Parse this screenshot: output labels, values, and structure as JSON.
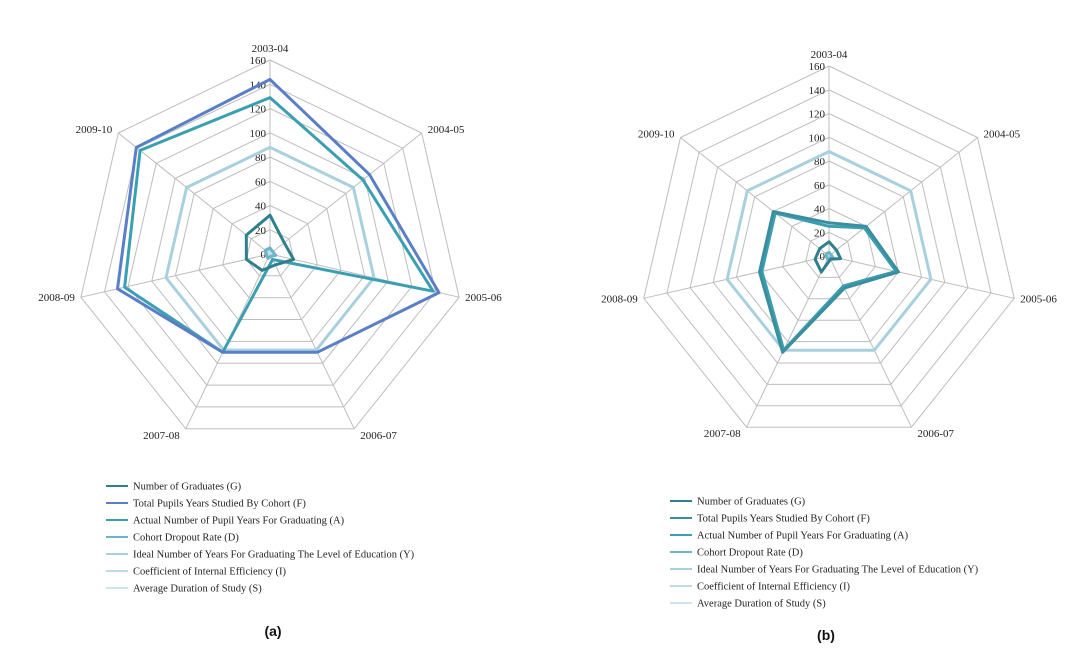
{
  "chart_data": [
    {
      "type": "radar",
      "panel_label": "(a)",
      "categories": [
        "2003-04",
        "2004-05",
        "2005-06",
        "2006-07",
        "2007-08",
        "2008-09",
        "2009-10"
      ],
      "ticks": [
        "0",
        "20",
        "40",
        "60",
        "80",
        "100",
        "120",
        "140",
        "160"
      ],
      "rlim": [
        0,
        160
      ],
      "legend_position": "bottom",
      "series": [
        {
          "name": "Number of Graduates (G)",
          "color": "#2f7f8c",
          "values": [
            32,
            15,
            20,
            10,
            15,
            20,
            25
          ]
        },
        {
          "name": "Total Pupils Years Studied By Cohort (F)",
          "color": "#5b7fc7",
          "values": [
            144,
            105,
            143,
            90,
            90,
            129,
            141
          ]
        },
        {
          "name": "Actual Number of Pupil Years For Graduating (A)",
          "color": "#3b9fb2",
          "values": [
            129,
            98,
            138,
            5,
            90,
            123,
            137
          ]
        },
        {
          "name": "Cohort Dropout Rate (D)",
          "color": "#6fb3c6",
          "values": [
            5,
            3,
            5,
            2,
            4,
            3,
            5
          ]
        },
        {
          "name": "Ideal Number of Years For Graduating The Level of Education (Y)",
          "color": "#a9d0de",
          "values": [
            88,
            88,
            88,
            88,
            88,
            88,
            88
          ]
        },
        {
          "name": "Coefficient of Internal Efficiency (I)",
          "color": "#bcdbe6",
          "values": [
            3,
            3,
            3,
            3,
            3,
            3,
            3
          ]
        },
        {
          "name": "Average Duration of Study (S)",
          "color": "#cfe5ee",
          "values": [
            2,
            2,
            2,
            2,
            2,
            2,
            2
          ]
        }
      ]
    },
    {
      "type": "radar",
      "panel_label": "(b)",
      "categories": [
        "2003-04",
        "2004-05",
        "2005-06",
        "2006-07",
        "2007-08",
        "2008-09",
        "2009-10"
      ],
      "ticks": [
        "0",
        "20",
        "40",
        "60",
        "80",
        "100",
        "120",
        "140",
        "160"
      ],
      "rlim": [
        0,
        160
      ],
      "legend_position": "bottom",
      "series": [
        {
          "name": "Number of Graduates (G)",
          "color": "#2f7f8c",
          "values": [
            12,
            8,
            10,
            3,
            15,
            12,
            10
          ]
        },
        {
          "name": "Total Pupils Years Studied By Cohort (F)",
          "color": "#3a8e9e",
          "values": [
            28,
            40,
            60,
            30,
            90,
            60,
            60
          ]
        },
        {
          "name": "Actual Number of Pupil Years For Graduating (A)",
          "color": "#3b9fb2",
          "values": [
            25,
            38,
            58,
            28,
            88,
            58,
            58
          ]
        },
        {
          "name": "Cohort Dropout Rate (D)",
          "color": "#6fb3c6",
          "values": [
            3,
            2,
            3,
            2,
            3,
            2,
            3
          ]
        },
        {
          "name": "Ideal Number of Years For Graduating The Level of Education (Y)",
          "color": "#a9d0de",
          "values": [
            88,
            88,
            88,
            88,
            88,
            88,
            88
          ]
        },
        {
          "name": "Coefficient of Internal Efficiency (I)",
          "color": "#bcdbe6",
          "values": [
            2,
            2,
            2,
            2,
            2,
            2,
            2
          ]
        },
        {
          "name": "Average Duration of Study (S)",
          "color": "#cfe5ee",
          "values": [
            1,
            1,
            1,
            1,
            1,
            1,
            1
          ]
        }
      ]
    }
  ]
}
